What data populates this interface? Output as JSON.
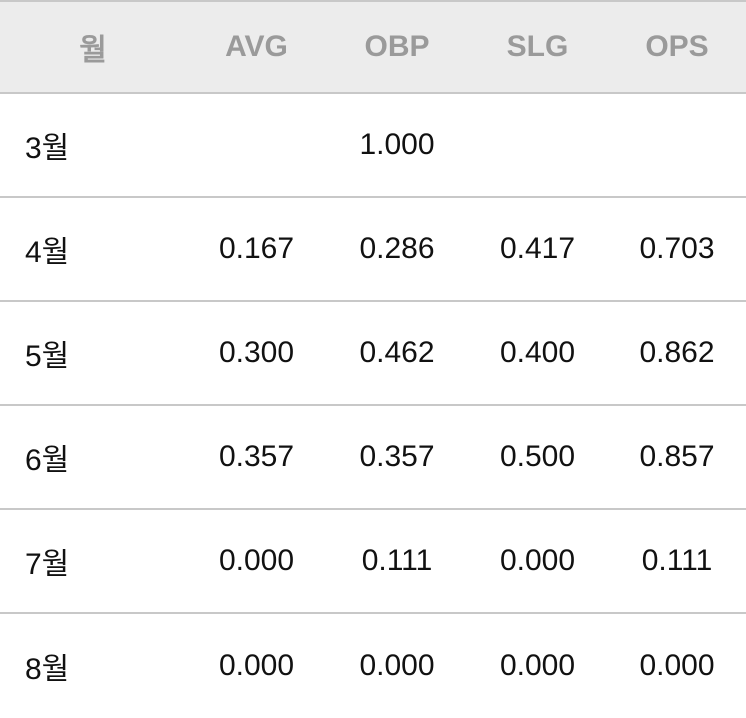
{
  "table": {
    "header": [
      "월",
      "AVG",
      "OBP",
      "SLG",
      "OPS"
    ],
    "rows": [
      [
        "3월",
        null,
        "1.000",
        null,
        null
      ],
      [
        "4월",
        "0.167",
        "0.286",
        "0.417",
        "0.703"
      ],
      [
        "5월",
        "0.300",
        "0.462",
        "0.400",
        "0.862"
      ],
      [
        "6월",
        "0.357",
        "0.357",
        "0.500",
        "0.857"
      ],
      [
        "7월",
        "0.000",
        "0.111",
        "0.000",
        "0.111"
      ],
      [
        "8월",
        "0.000",
        "0.000",
        "0.000",
        "0.000"
      ]
    ]
  }
}
